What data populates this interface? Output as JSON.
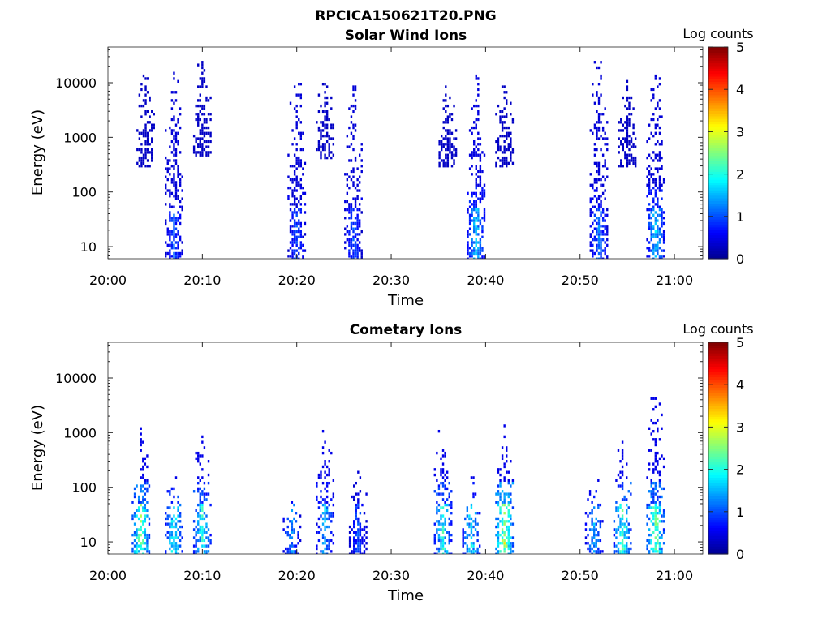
{
  "figure": {
    "title": "RPCICA150621T20.PNG"
  },
  "colors": {
    "colormap": [
      "#00008f",
      "#0000ff",
      "#007fff",
      "#00ffff",
      "#7fff7f",
      "#ffff00",
      "#ff7f00",
      "#ff0000",
      "#7f0000"
    ],
    "axis": "#262626",
    "background": "#ffffff"
  },
  "chart_data": [
    {
      "type": "heatmap",
      "title": "Solar Wind Ions",
      "xlabel": "Time",
      "ylabel": "Energy (eV)",
      "x_ticks": [
        "20:00",
        "20:10",
        "20:20",
        "20:30",
        "20:40",
        "20:50",
        "21:00"
      ],
      "x_range": [
        "20:00",
        "21:03"
      ],
      "y_scale": "log",
      "y_ticks": [
        "10",
        "100",
        "1000",
        "10000"
      ],
      "y_range": [
        6,
        45000
      ],
      "colorbar": {
        "label": "Log counts",
        "ticks": [
          "0",
          "1",
          "2",
          "3",
          "4",
          "5"
        ],
        "range": [
          0,
          5
        ]
      },
      "bursts": [
        {
          "time": "20:04",
          "emin": 300,
          "emax": 18000,
          "level": 0.3,
          "low_energy_level": 0.3
        },
        {
          "time": "20:07",
          "emin": 6,
          "emax": 17000,
          "level": 0.4,
          "low_energy_level": 1.0
        },
        {
          "time": "20:10",
          "emin": 500,
          "emax": 25000,
          "level": 0.3,
          "low_energy_level": 0.3
        },
        {
          "time": "20:20",
          "emin": 6,
          "emax": 13000,
          "level": 0.4,
          "low_energy_level": 1.0
        },
        {
          "time": "20:23",
          "emin": 400,
          "emax": 12000,
          "level": 0.3,
          "low_energy_level": 0.3
        },
        {
          "time": "20:26",
          "emin": 6,
          "emax": 10000,
          "level": 0.4,
          "low_energy_level": 1.0
        },
        {
          "time": "20:36",
          "emin": 300,
          "emax": 8000,
          "level": 0.3,
          "low_energy_level": 0.3
        },
        {
          "time": "20:39",
          "emin": 6,
          "emax": 13000,
          "level": 0.45,
          "low_energy_level": 1.6
        },
        {
          "time": "20:42",
          "emin": 300,
          "emax": 10000,
          "level": 0.3,
          "low_energy_level": 0.3
        },
        {
          "time": "20:52",
          "emin": 6,
          "emax": 33000,
          "level": 0.4,
          "low_energy_level": 1.2
        },
        {
          "time": "20:55",
          "emin": 300,
          "emax": 10000,
          "level": 0.3,
          "low_energy_level": 0.3
        },
        {
          "time": "20:58",
          "emin": 6,
          "emax": 14000,
          "level": 0.4,
          "low_energy_level": 1.6
        }
      ]
    },
    {
      "type": "heatmap",
      "title": "Cometary Ions",
      "xlabel": "Time",
      "ylabel": "Energy (eV)",
      "x_ticks": [
        "20:00",
        "20:10",
        "20:20",
        "20:30",
        "20:40",
        "20:50",
        "21:00"
      ],
      "x_range": [
        "20:00",
        "21:03"
      ],
      "y_scale": "log",
      "y_ticks": [
        "10",
        "100",
        "1000",
        "10000"
      ],
      "y_range": [
        6,
        45000
      ],
      "colorbar": {
        "label": "Log counts",
        "ticks": [
          "0",
          "1",
          "2",
          "3",
          "4",
          "5"
        ],
        "range": [
          0,
          5
        ]
      },
      "bursts": [
        {
          "time": "20:03.5",
          "emin": 6,
          "emax": 1200,
          "level": 0.5,
          "low_energy_level": 2.5
        },
        {
          "time": "20:07",
          "emin": 6,
          "emax": 150,
          "level": 0.5,
          "low_energy_level": 2.0
        },
        {
          "time": "20:10",
          "emin": 6,
          "emax": 900,
          "level": 0.5,
          "low_energy_level": 2.0
        },
        {
          "time": "20:19.5",
          "emin": 6,
          "emax": 80,
          "level": 0.5,
          "low_energy_level": 1.3
        },
        {
          "time": "20:23",
          "emin": 6,
          "emax": 1000,
          "level": 0.5,
          "low_energy_level": 1.5
        },
        {
          "time": "20:26.5",
          "emin": 6,
          "emax": 200,
          "level": 0.4,
          "low_energy_level": 1.0
        },
        {
          "time": "20:35.5",
          "emin": 6,
          "emax": 1000,
          "level": 0.5,
          "low_energy_level": 2.0
        },
        {
          "time": "20:38.5",
          "emin": 6,
          "emax": 150,
          "level": 0.5,
          "low_energy_level": 1.8
        },
        {
          "time": "20:42",
          "emin": 6,
          "emax": 1300,
          "level": 0.5,
          "low_energy_level": 2.8
        },
        {
          "time": "20:51.5",
          "emin": 6,
          "emax": 150,
          "level": 0.5,
          "low_energy_level": 1.5
        },
        {
          "time": "20:54.5",
          "emin": 6,
          "emax": 650,
          "level": 0.5,
          "low_energy_level": 2.2
        },
        {
          "time": "20:58",
          "emin": 6,
          "emax": 6000,
          "level": 0.5,
          "low_energy_level": 2.5
        }
      ]
    }
  ]
}
